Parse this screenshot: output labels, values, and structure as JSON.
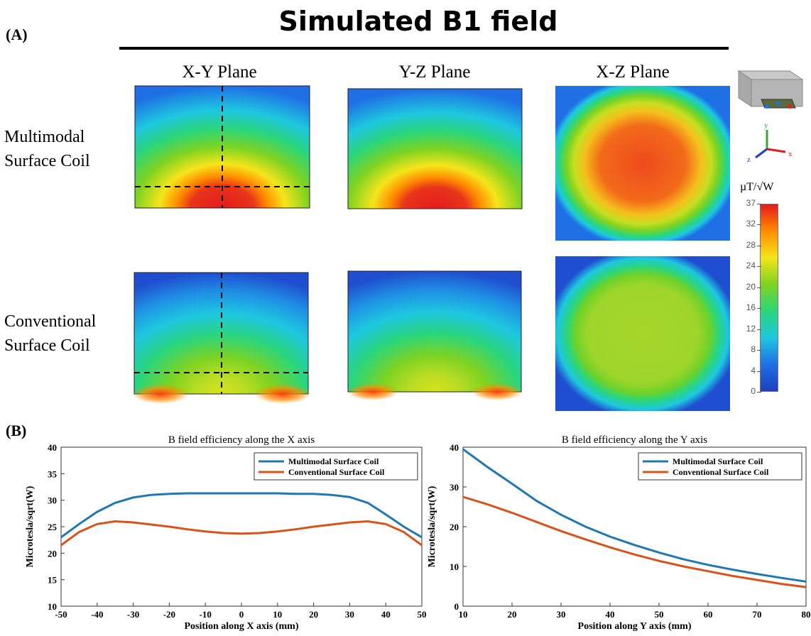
{
  "figure": {
    "panel_a_label": "(A)",
    "panel_b_label": "(B)",
    "title": "Simulated B1 field"
  },
  "maps": {
    "columns": [
      "X-Y Plane",
      "Y-Z Plane",
      "X-Z Plane"
    ],
    "rows": [
      {
        "line1": "Multimodal",
        "line2": "Surface Coil"
      },
      {
        "line1": "Conventional",
        "line2": "Surface Coil"
      }
    ]
  },
  "colorbar": {
    "unit": "µT/√W",
    "ticks": [
      "37",
      "32",
      "28",
      "24",
      "20",
      "16",
      "12",
      "8",
      "4",
      "0"
    ],
    "colors": [
      "#e41a1c",
      "#ff8c00",
      "#f5e51b",
      "#7ed321",
      "#2bd67b",
      "#1ec8e0",
      "#1f6fe5",
      "#1f3fbf"
    ]
  },
  "orientation_icon": {
    "axes": [
      "y",
      "z",
      "x"
    ]
  },
  "chart_data": [
    {
      "type": "line",
      "title": "B field efficiency along the X axis",
      "xlabel": "Position along X axis (mm)",
      "ylabel": "Microtesla/sqrt(W)",
      "xlim": [
        -50,
        50
      ],
      "ylim": [
        10,
        40
      ],
      "xticks": [
        -50,
        -40,
        -30,
        -20,
        -10,
        0,
        10,
        20,
        30,
        40,
        50
      ],
      "yticks": [
        10,
        15,
        20,
        25,
        30,
        35,
        40
      ],
      "legend_position": "top-right",
      "series": [
        {
          "name": "Multimodal Surface Coil",
          "color": "#1f77b4",
          "x": [
            -50,
            -45,
            -40,
            -35,
            -30,
            -25,
            -20,
            -15,
            -10,
            -5,
            0,
            5,
            10,
            15,
            20,
            25,
            30,
            35,
            40,
            45,
            50
          ],
          "y": [
            23.0,
            25.5,
            27.8,
            29.5,
            30.5,
            31.0,
            31.2,
            31.3,
            31.3,
            31.3,
            31.3,
            31.3,
            31.3,
            31.2,
            31.2,
            31.0,
            30.6,
            29.5,
            27.3,
            25.0,
            23.0
          ]
        },
        {
          "name": "Conventional Surface Coil",
          "color": "#d95319",
          "x": [
            -50,
            -45,
            -40,
            -35,
            -30,
            -25,
            -20,
            -15,
            -10,
            -5,
            0,
            5,
            10,
            15,
            20,
            25,
            30,
            35,
            40,
            45,
            50
          ],
          "y": [
            21.5,
            24.0,
            25.5,
            26.0,
            25.8,
            25.4,
            25.0,
            24.5,
            24.1,
            23.8,
            23.7,
            23.8,
            24.1,
            24.5,
            25.0,
            25.4,
            25.8,
            26.0,
            25.5,
            24.0,
            21.5
          ]
        }
      ]
    },
    {
      "type": "line",
      "title": "B field efficiency along the Y axis",
      "xlabel": "Position along Y axis (mm)",
      "ylabel": "Microtesla/sqrt(W)",
      "xlim": [
        10,
        80
      ],
      "ylim": [
        0,
        40
      ],
      "xticks": [
        10,
        20,
        30,
        40,
        50,
        60,
        70,
        80
      ],
      "yticks": [
        0,
        10,
        20,
        30,
        40
      ],
      "legend_position": "top-right",
      "series": [
        {
          "name": "Multimodal Surface Coil",
          "color": "#1f77b4",
          "x": [
            10,
            15,
            20,
            25,
            30,
            35,
            40,
            45,
            50,
            55,
            60,
            65,
            70,
            75,
            80
          ],
          "y": [
            39.5,
            35.0,
            30.8,
            26.5,
            23.0,
            20.0,
            17.5,
            15.4,
            13.5,
            11.8,
            10.4,
            9.2,
            8.1,
            7.1,
            6.2
          ]
        },
        {
          "name": "Conventional Surface Coil",
          "color": "#d95319",
          "x": [
            10,
            15,
            20,
            25,
            30,
            35,
            40,
            45,
            50,
            55,
            60,
            65,
            70,
            75,
            80
          ],
          "y": [
            27.5,
            25.6,
            23.5,
            21.2,
            18.9,
            16.8,
            14.8,
            13.0,
            11.4,
            10.0,
            8.8,
            7.6,
            6.6,
            5.6,
            4.8
          ]
        }
      ]
    }
  ]
}
